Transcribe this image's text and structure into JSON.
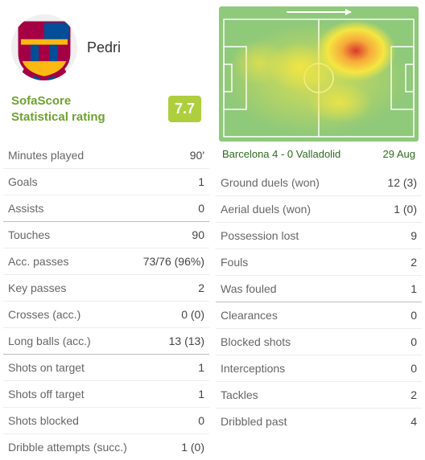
{
  "player": {
    "name": "Pedri",
    "avatar_bg": "#e8e8e8",
    "club_colors": {
      "top": "#a50044",
      "bottom": "#004d98"
    }
  },
  "rating": {
    "label_line1": "SofaScore",
    "label_line2": "Statistical rating",
    "value": "7.7",
    "badge_color": "#aece3e",
    "label_color": "#6fa230"
  },
  "heatmap": {
    "pitch_bg": "#8fc97a",
    "line_color": "#ffffff",
    "heat_colors": {
      "low": "#f5e642",
      "mid": "#f7a93b",
      "high": "#d93a2b"
    },
    "match_text": "Barcelona 4 - 0 Valladolid",
    "date_text": "29 Aug",
    "info_color": "#2d6b1f"
  },
  "stats_left": [
    [
      {
        "label": "Minutes played",
        "value": "90'"
      },
      {
        "label": "Goals",
        "value": "1"
      },
      {
        "label": "Assists",
        "value": "0"
      }
    ],
    [
      {
        "label": "Touches",
        "value": "90"
      },
      {
        "label": "Acc. passes",
        "value": "73/76 (96%)"
      },
      {
        "label": "Key passes",
        "value": "2"
      },
      {
        "label": "Crosses (acc.)",
        "value": "0 (0)"
      },
      {
        "label": "Long balls (acc.)",
        "value": "13 (13)"
      }
    ],
    [
      {
        "label": "Shots on target",
        "value": "1"
      },
      {
        "label": "Shots off target",
        "value": "1"
      },
      {
        "label": "Shots blocked",
        "value": "0"
      },
      {
        "label": "Dribble attempts (succ.)",
        "value": "1 (0)"
      }
    ]
  ],
  "stats_right": [
    [
      {
        "label": "Ground duels (won)",
        "value": "12 (3)"
      },
      {
        "label": "Aerial duels (won)",
        "value": "1 (0)"
      },
      {
        "label": "Possession lost",
        "value": "9"
      },
      {
        "label": "Fouls",
        "value": "2"
      },
      {
        "label": "Was fouled",
        "value": "1"
      }
    ],
    [
      {
        "label": "Clearances",
        "value": "0"
      },
      {
        "label": "Blocked shots",
        "value": "0"
      },
      {
        "label": "Interceptions",
        "value": "0"
      },
      {
        "label": "Tackles",
        "value": "2"
      },
      {
        "label": "Dribbled past",
        "value": "4"
      }
    ]
  ],
  "border_color": "#ececec",
  "group_divider_color": "#bdbdbd",
  "text_color": "#555"
}
